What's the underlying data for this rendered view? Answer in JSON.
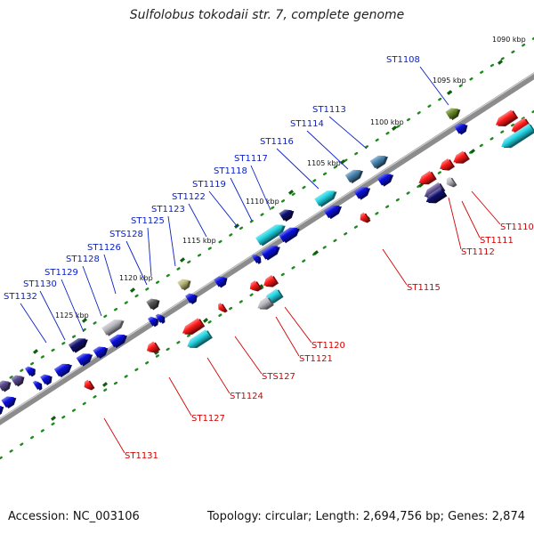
{
  "title": "Sulfolobus tokodaii str. 7, complete genome",
  "footer": {
    "accession": "Accession: NC_003106",
    "summary": "Topology: circular; Length: 2,694,756 bp; Genes: 2,874"
  },
  "scale_labels": [
    "1090 kbp",
    "1095 kbp",
    "1100 kbp",
    "1105 kbp",
    "1110 kbp",
    "1115 kbp",
    "1120 kbp",
    "1125 kbp"
  ],
  "genes_top": [
    "ST1108",
    "ST1113",
    "ST1114",
    "ST1116",
    "ST1117",
    "ST1118",
    "ST1119",
    "ST1122",
    "ST1123",
    "ST1125",
    "STS128",
    "ST1126",
    "ST1128",
    "ST1129",
    "ST1130",
    "ST1132"
  ],
  "genes_bottom": [
    "ST1110",
    "ST1111",
    "ST1112",
    "ST1115",
    "ST1120",
    "ST1121",
    "STS127",
    "ST1124",
    "ST1127",
    "ST1131"
  ],
  "colors": {
    "backbone": "#8a8a8a",
    "scale_dots": "#1e8a1e",
    "forward_label": "#0b21c8",
    "reverse_label": "#d40000",
    "red": "#ff1a1a",
    "blue": "#0a10e0",
    "cyan": "#22d4e4",
    "steel": "#4a86b2",
    "navy": "#101070",
    "grey": "#b8b8c0",
    "olive": "#6a8a2a",
    "khaki": "#b8b878",
    "purple": "#5a4a8e"
  }
}
